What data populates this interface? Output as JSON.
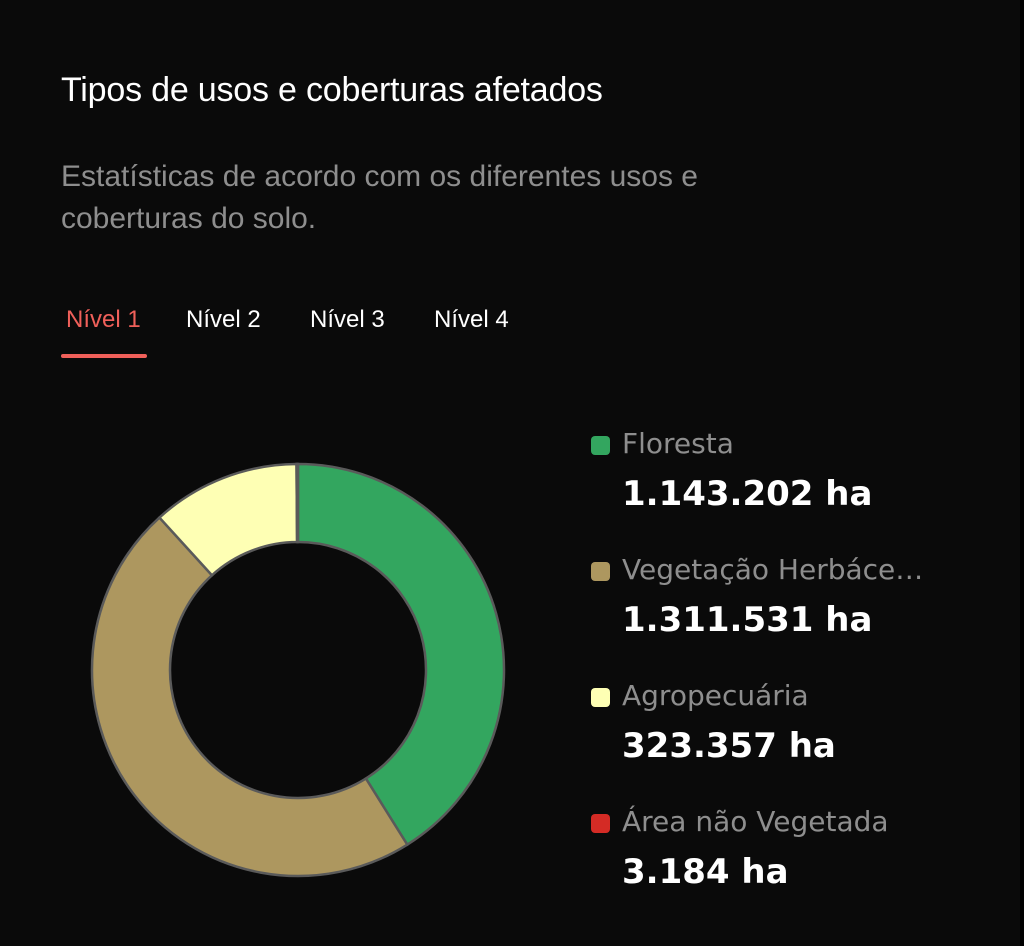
{
  "header": {
    "title": "Tipos de usos e coberturas afetados",
    "subtitle": "Estatísticas de acordo com os diferentes usos e coberturas do solo."
  },
  "tabs": [
    {
      "label": "Nível 1",
      "active": true
    },
    {
      "label": "Nível 2",
      "active": false
    },
    {
      "label": "Nível 3",
      "active": false
    },
    {
      "label": "Nível 4",
      "active": false
    }
  ],
  "colors": {
    "accent": "#f0605a",
    "background": "#0a0a0a",
    "slice_stroke": "#5a5a5a"
  },
  "chart_data": {
    "type": "pie",
    "donut": true,
    "categories": [
      "Floresta",
      "Vegetação Herbáce…",
      "Agropecuária",
      "Área não Vegetada"
    ],
    "values": [
      1143202,
      1311531,
      323357,
      3184
    ],
    "value_labels": [
      "1.143.202 ha",
      "1.311.531 ha",
      "323.357 ha",
      "3.184 ha"
    ],
    "colors": [
      "#33a65f",
      "#ad975f",
      "#feffb4",
      "#d42b25"
    ],
    "unit": "ha",
    "legend": "right"
  }
}
